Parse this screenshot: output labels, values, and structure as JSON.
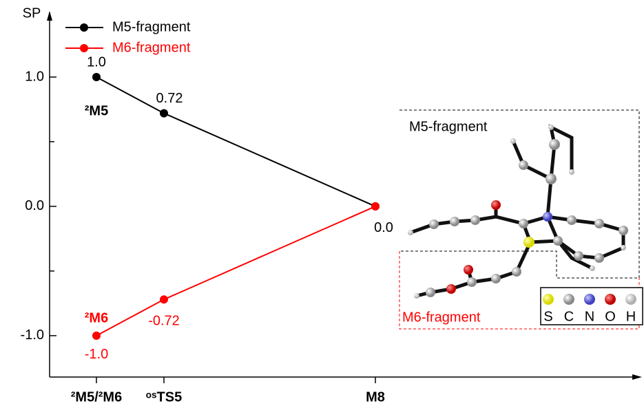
{
  "chart_data": {
    "type": "line",
    "y_label": "SP",
    "categories": [
      "²M5/²M6",
      "ᵒˢTS5",
      "M8"
    ],
    "series": [
      {
        "name": "M5-fragment",
        "color": "#000000",
        "values": [
          1.0,
          0.72,
          0.0
        ],
        "value_labels": [
          "1.0",
          "0.72",
          "0.0"
        ]
      },
      {
        "name": "M6-fragment",
        "color": "#ff0000",
        "values": [
          -1.0,
          -0.72,
          0.0
        ],
        "value_labels": [
          "-1.0",
          "-0.72",
          null
        ]
      }
    ],
    "annotations": [
      {
        "text": "²M5",
        "color": "#000000"
      },
      {
        "text": "²M6",
        "color": "#ff0000"
      }
    ],
    "ylim": [
      -1.32,
      1.5
    ],
    "yticks": [
      {
        "value": -1,
        "label": "-1.0"
      },
      {
        "value": 0,
        "label": "0.0"
      },
      {
        "value": 1,
        "label": "1.0"
      }
    ],
    "yminorticks": [
      -0.5,
      0.5
    ],
    "legend": "top-left",
    "inset": {
      "m5_label": "M5-fragment",
      "m6_label": "M6-fragment",
      "atoms": [
        "S",
        "C",
        "N",
        "O",
        "H"
      ]
    }
  }
}
